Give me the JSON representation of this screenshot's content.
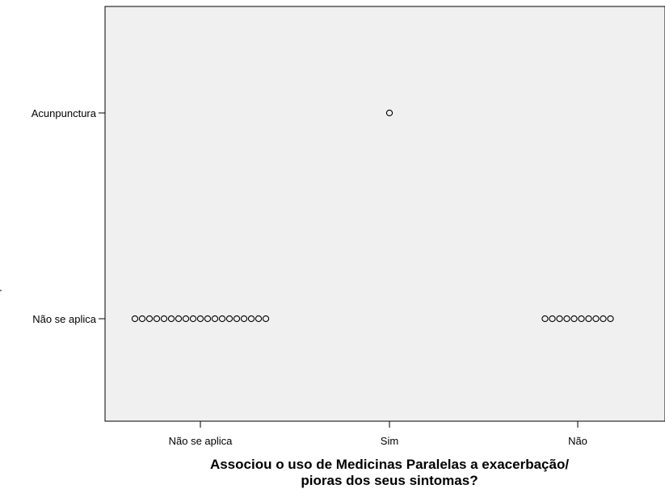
{
  "chart_data": {
    "type": "scatter",
    "title": "",
    "xlabel": "Associou o uso de Medicinas Paralelas a exacerbação/",
    "xlabel_line2": "pioras dos seus sintomas?",
    "ylabel": "",
    "x_categories": [
      "Não se aplica",
      "Sim",
      "Não"
    ],
    "y_categories": [
      "Não se aplica",
      "Acunpunctura"
    ],
    "marker": "hollow-circle",
    "grid": false,
    "background": "#f0f0f0",
    "points": [
      {
        "x": "Não se aplica",
        "y": "Não se aplica",
        "count": 19
      },
      {
        "x": "Sim",
        "y": "Acunpunctura",
        "count": 1
      },
      {
        "x": "Não",
        "y": "Não se aplica",
        "count": 10
      }
    ]
  }
}
